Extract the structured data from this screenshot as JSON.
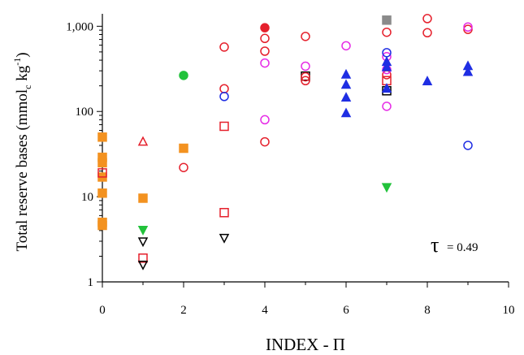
{
  "chart_data": {
    "type": "scatter",
    "title": "",
    "xlabel": "INDEX - Π",
    "ylabel_main": "Total reserve bases (mmol",
    "ylabel_sub": "c",
    "ylabel_tail": " kg",
    "ylabel_sup": "-1",
    "ylabel_close": ")",
    "xlim": [
      0,
      10
    ],
    "ylim": [
      1,
      1400
    ],
    "yscale": "log",
    "grid": false,
    "x_ticks": [
      0,
      2,
      4,
      6,
      8,
      10
    ],
    "x_tick_labels": [
      "0",
      "2",
      "4",
      "6",
      "8",
      "10"
    ],
    "y_ticks": [
      1,
      10,
      100,
      1000
    ],
    "y_tick_labels": [
      "1",
      "10",
      "100",
      "1,000"
    ],
    "annotation": {
      "symbol": "τ",
      "text": "= 0.49",
      "x": 8.8,
      "y": 2.7
    },
    "colors": {
      "orange": "#f39220",
      "red": "#e5202c",
      "magenta": "#e62ce6",
      "blue": "#1f2ee3",
      "green": "#22c23b",
      "gray": "#8a8a8a",
      "black": "#000000"
    },
    "series": [
      {
        "marker": "filled-square",
        "color": "#f39220",
        "points": [
          [
            0,
            50
          ],
          [
            0,
            29
          ],
          [
            0,
            25
          ],
          [
            0,
            17
          ],
          [
            0,
            11
          ],
          [
            0,
            5.0
          ],
          [
            0,
            4.6
          ],
          [
            1,
            9.6
          ],
          [
            2,
            37
          ]
        ]
      },
      {
        "marker": "open-square",
        "color": "#e5202c",
        "points": [
          [
            0,
            19
          ],
          [
            1,
            1.9
          ],
          [
            3,
            67
          ],
          [
            3,
            6.5
          ],
          [
            7,
            230
          ]
        ]
      },
      {
        "marker": "open-square",
        "color": "#000000",
        "points": [
          [
            5,
            260
          ],
          [
            7,
            175
          ]
        ]
      },
      {
        "marker": "filled-square",
        "color": "#8a8a8a",
        "points": [
          [
            7,
            1180
          ]
        ]
      },
      {
        "marker": "open-circle",
        "color": "#e5202c",
        "points": [
          [
            2,
            22
          ],
          [
            3,
            570
          ],
          [
            3,
            185
          ],
          [
            4,
            720
          ],
          [
            4,
            510
          ],
          [
            4,
            44
          ],
          [
            5,
            760
          ],
          [
            5,
            230
          ],
          [
            5,
            255
          ],
          [
            7,
            850
          ],
          [
            7,
            270
          ],
          [
            8,
            1230
          ],
          [
            8,
            840
          ],
          [
            9,
            920
          ]
        ]
      },
      {
        "marker": "filled-circle",
        "color": "#e5202c",
        "points": [
          [
            4,
            960
          ]
        ]
      },
      {
        "marker": "open-circle",
        "color": "#e62ce6",
        "points": [
          [
            4,
            370
          ],
          [
            4,
            80
          ],
          [
            5,
            340
          ],
          [
            6,
            590
          ],
          [
            7,
            440
          ],
          [
            7,
            310
          ],
          [
            7,
            115
          ],
          [
            9,
            980
          ]
        ]
      },
      {
        "marker": "open-circle",
        "color": "#1f2ee3",
        "points": [
          [
            3,
            150
          ],
          [
            7,
            490
          ],
          [
            9,
            40
          ]
        ]
      },
      {
        "marker": "filled-circle",
        "color": "#22c23b",
        "points": [
          [
            2,
            265
          ]
        ]
      },
      {
        "marker": "open-triangle-up",
        "color": "#e5202c",
        "points": [
          [
            1,
            44
          ]
        ]
      },
      {
        "marker": "filled-triangle-up",
        "color": "#1f2ee3",
        "points": [
          [
            6,
            270
          ],
          [
            6,
            205
          ],
          [
            6,
            145
          ],
          [
            6,
            95
          ],
          [
            7,
            380
          ],
          [
            7,
            330
          ],
          [
            7,
            185
          ],
          [
            8,
            225
          ],
          [
            9,
            340
          ],
          [
            9,
            290
          ]
        ]
      },
      {
        "marker": "filled-triangle-down",
        "color": "#22c23b",
        "points": [
          [
            1,
            4.1
          ],
          [
            7,
            13
          ]
        ]
      },
      {
        "marker": "open-triangle-down",
        "color": "#000000",
        "points": [
          [
            1,
            3.0
          ],
          [
            1,
            1.6
          ],
          [
            3,
            3.3
          ]
        ]
      }
    ]
  }
}
